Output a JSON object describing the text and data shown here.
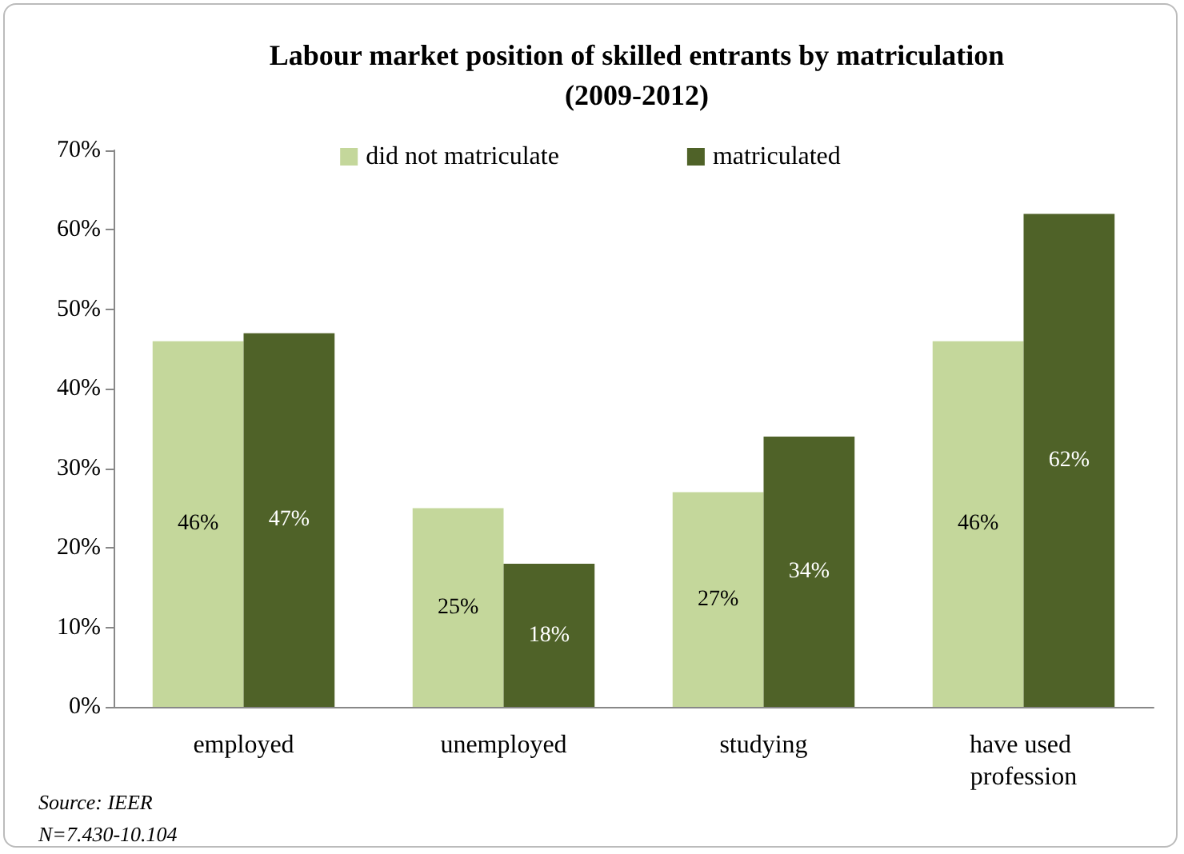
{
  "chart_data": {
    "type": "bar",
    "title": "Labour market position of skilled entrants by matriculation\n(2009-2012)",
    "categories": [
      "employed",
      "unemployed",
      "studying",
      "have used profession"
    ],
    "series": [
      {
        "name": "did not matriculate",
        "color": "#c4d79b",
        "values": [
          46,
          25,
          27,
          46
        ],
        "value_labels": [
          "46%",
          "25%",
          "27%",
          "46%"
        ]
      },
      {
        "name": "matriculated",
        "color": "#4f6228",
        "values": [
          47,
          18,
          34,
          62
        ],
        "value_labels": [
          "47%",
          "18%",
          "34%",
          "62%"
        ]
      }
    ],
    "ylim": [
      0,
      70
    ],
    "yticks": [
      {
        "value": 0,
        "label": "0%"
      },
      {
        "value": 10,
        "label": "10%"
      },
      {
        "value": 20,
        "label": "20%"
      },
      {
        "value": 30,
        "label": "30%"
      },
      {
        "value": 40,
        "label": "40%"
      },
      {
        "value": 50,
        "label": "50%"
      },
      {
        "value": 60,
        "label": "60%"
      },
      {
        "value": 70,
        "label": "70%"
      }
    ],
    "grid": false,
    "legend": "top",
    "annotations": [
      "Source: IEER",
      "N=7.430-10.104"
    ]
  }
}
